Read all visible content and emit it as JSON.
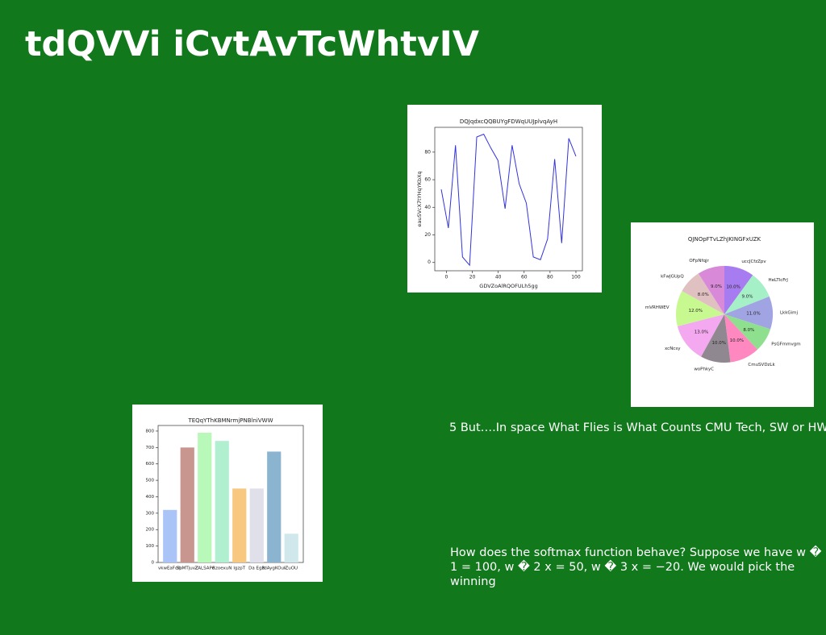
{
  "title": "tdQVVi iCvtAvTcWhtvIV",
  "texts": [
    "5 But….In space What Flies is What Counts CMU Tech, SW or HW",
    "How does the softmax function behave? Suppose we have w � 1 = 100, w � 2 x = 50, w � 3 x = −20. We would pick the winning"
  ],
  "chart_data": [
    {
      "type": "line",
      "title": "DQJqdxcQQBUYgFDWqUUJplvqAyH",
      "x_label": "GDVZoAlRQOFULh5gg",
      "y_label": "eauSVcX7tYHqYKbXq",
      "color": "#3333dd",
      "x": [
        -4,
        1.5,
        7,
        12.4,
        17.9,
        23.4,
        28.8,
        34.3,
        39.8,
        45.3,
        50.7,
        56.2,
        61.7,
        67.1,
        72.6,
        78.1,
        83.6,
        89,
        94.5,
        100
      ],
      "values": [
        53,
        25,
        85,
        4,
        -2,
        91,
        93,
        83,
        74,
        39,
        85,
        57,
        43,
        4,
        2,
        17,
        75,
        14,
        90,
        77
      ],
      "xlim": [
        -9,
        105
      ],
      "ylim": [
        -6,
        98
      ],
      "xticks": [
        0,
        20,
        40,
        60,
        80,
        100
      ],
      "yticks": [
        0,
        20,
        40,
        60,
        80
      ]
    },
    {
      "type": "pie",
      "title": "QJNOpFTvLZhJKINGFxUZK",
      "categories": [
        "uccJCfzZpv",
        "HeLTlcFrJ",
        "LkkGimj",
        "PsGFmmvgm",
        "CmuSVDzLk",
        "woPhkyC",
        "xcNcsy",
        "mVRHWEV",
        "kFwJGUpQ",
        "OFpNfqjr"
      ],
      "values": [
        10,
        9,
        11,
        8,
        10,
        10,
        13,
        12,
        8,
        9
      ],
      "value_labels": [
        "10.0%",
        "9.0%",
        "11.0%",
        "8.0%",
        "10.0%",
        "10.0%",
        "13.0%",
        "12.0%",
        "8.0%",
        "9.0%"
      ],
      "colors": [
        "#a77cf0",
        "#a6f0c8",
        "#a0a4e2",
        "#8ee08e",
        "#ff88c0",
        "#908890",
        "#f4a8f0",
        "#c8f890",
        "#e0c0c0",
        "#d88ad8"
      ]
    },
    {
      "type": "bar",
      "title": "TEQqYThKBMNrmjPNBlniVWW",
      "categories": [
        "vkwEaFdlb",
        "SpMTjuvZ",
        "ZALSAPe",
        "RzoexuN",
        "lgzpT",
        "Da EgR",
        "zdAygKOuk",
        "ZuOU"
      ],
      "values": [
        320,
        700,
        790,
        740,
        450,
        450,
        675,
        175
      ],
      "colors": [
        "#aac4f8",
        "#c8968e",
        "#b8f8b8",
        "#b0f0d0",
        "#f8c880",
        "#e0e0ea",
        "#8ab4d0",
        "#d0e8ec"
      ],
      "ylim": [
        0,
        834
      ],
      "yticks": [
        0,
        100,
        200,
        300,
        400,
        500,
        600,
        700,
        800
      ]
    }
  ]
}
